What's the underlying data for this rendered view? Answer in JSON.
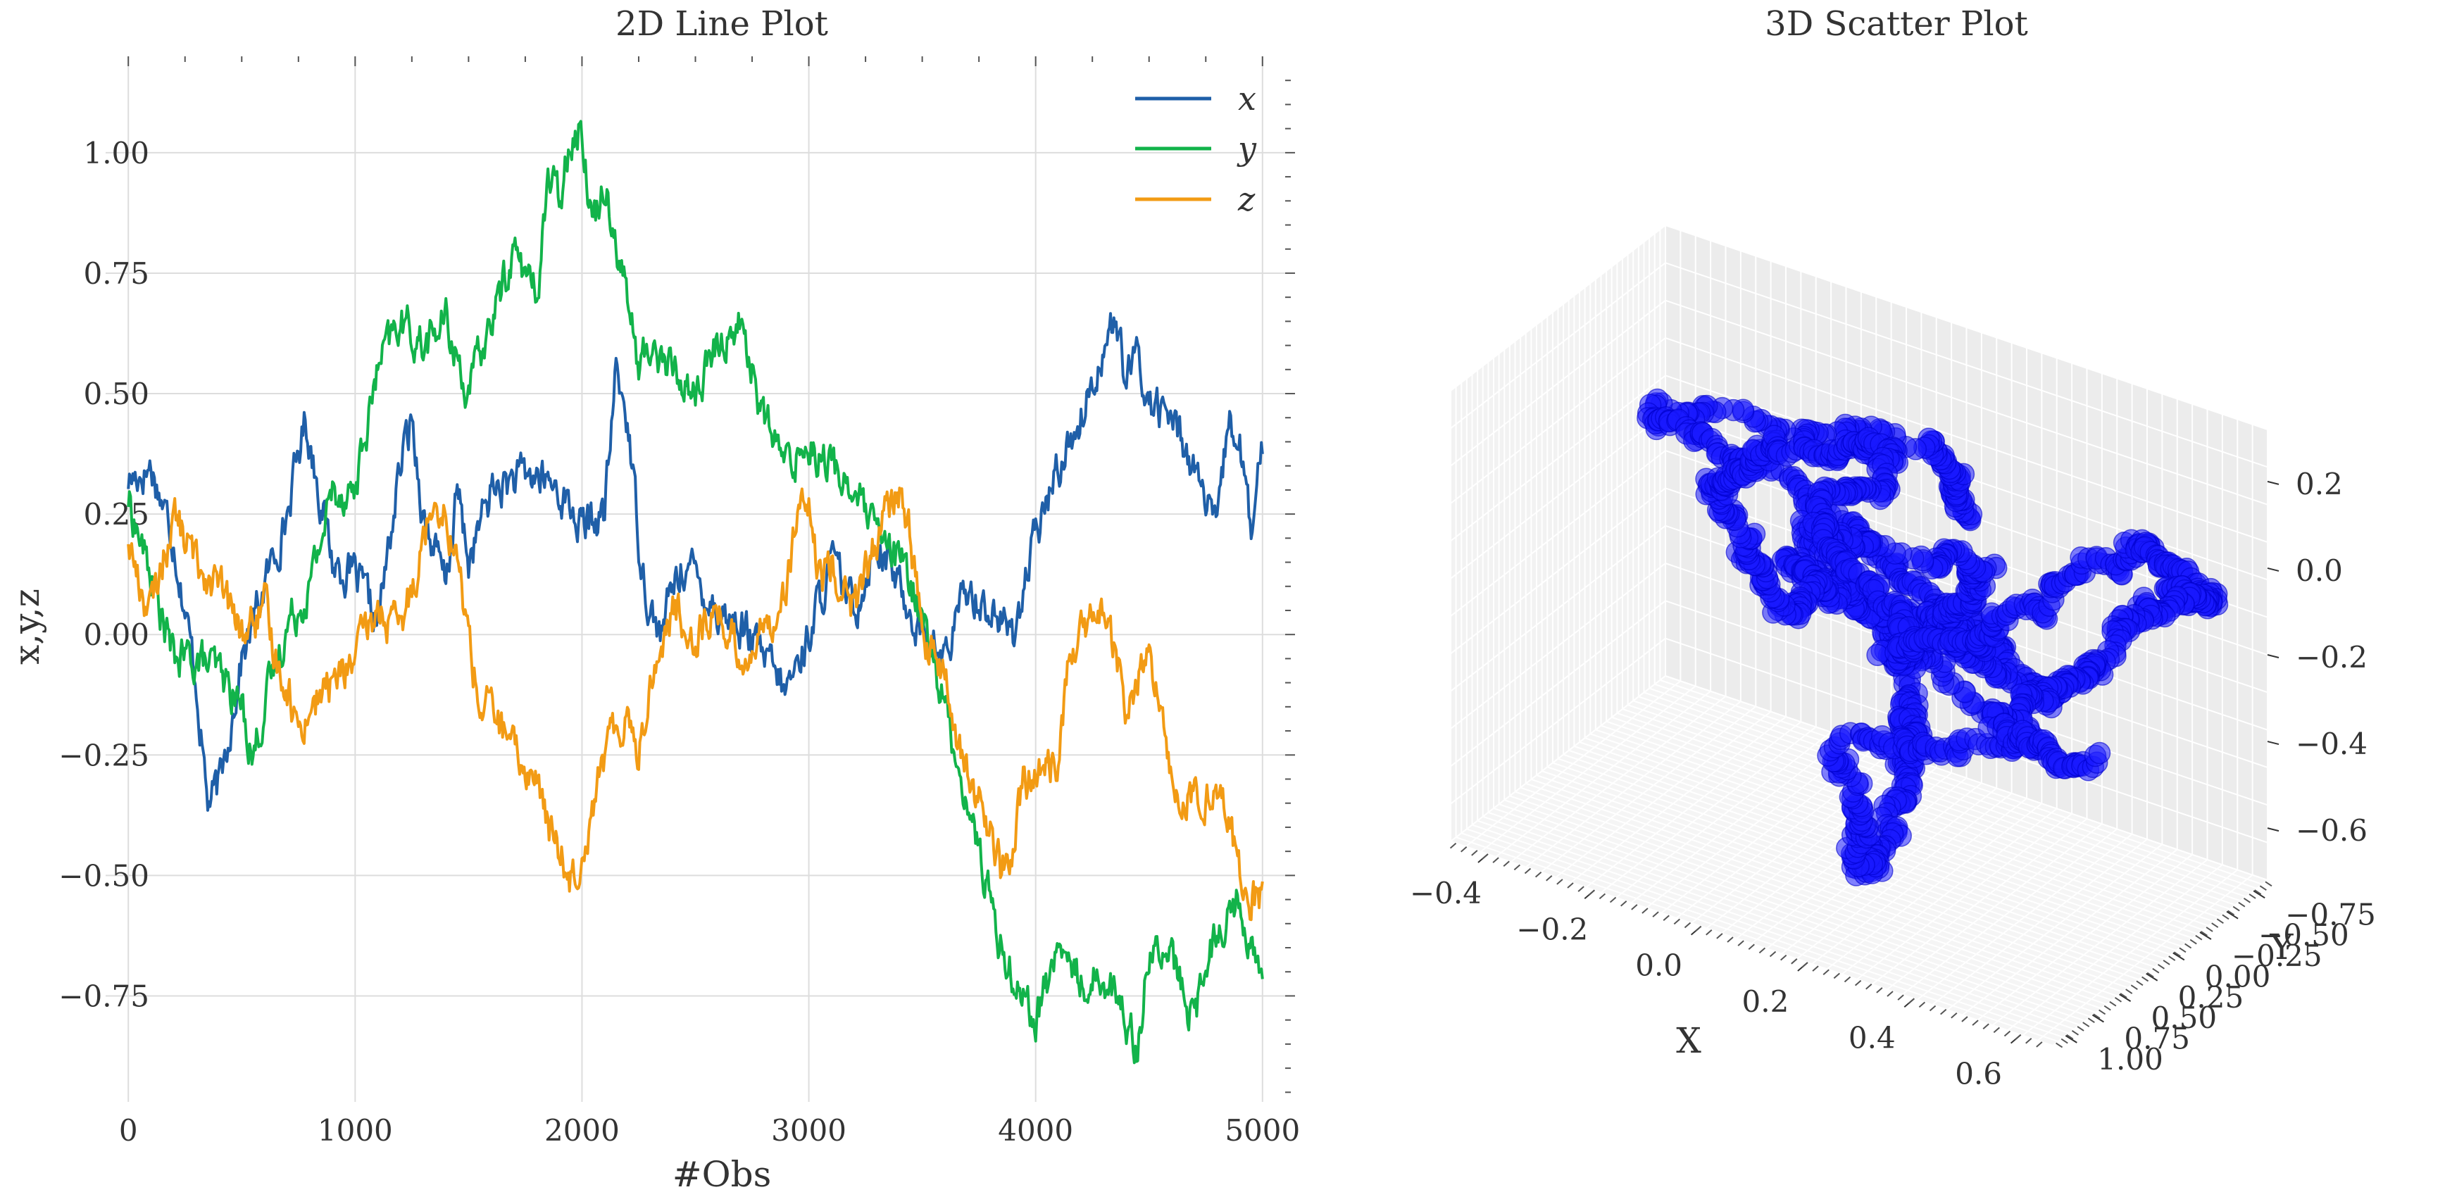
{
  "chart_data": [
    {
      "type": "line",
      "title": "2D Line Plot",
      "xlabel": "#Obs",
      "ylabel": "x,y,z",
      "xlim": [
        -100,
        5100
      ],
      "ylim": [
        -0.97,
        1.2
      ],
      "x_ticks": [
        "0",
        "1000",
        "2000",
        "3000",
        "4000",
        "5000"
      ],
      "y_ticks": [
        "−0.75",
        "−0.50",
        "−0.25",
        "0.00",
        "0.25",
        "0.50",
        "0.75",
        "1.00"
      ],
      "grid": true,
      "legend": "top-right",
      "series": [
        {
          "name": "x",
          "color": "#1f5fa8",
          "x": [
            0,
            100,
            200,
            300,
            350,
            400,
            500,
            600,
            700,
            780,
            850,
            900,
            1000,
            1100,
            1200,
            1250,
            1300,
            1400,
            1450,
            1500,
            1600,
            1700,
            1800,
            1900,
            2000,
            2100,
            2150,
            2200,
            2250,
            2300,
            2350,
            2400,
            2450,
            2500,
            2600,
            2700,
            2800,
            2900,
            3000,
            3100,
            3200,
            3300,
            3400,
            3500,
            3600,
            3700,
            3800,
            3900,
            4000,
            4100,
            4200,
            4300,
            4350,
            4400,
            4450,
            4500,
            4600,
            4700,
            4800,
            4850,
            4900,
            4950,
            5000
          ],
          "values": [
            0.32,
            0.35,
            0.2,
            -0.1,
            -0.35,
            -0.32,
            -0.05,
            0.1,
            0.25,
            0.45,
            0.28,
            0.15,
            0.12,
            0.02,
            0.35,
            0.45,
            0.25,
            0.1,
            0.3,
            0.15,
            0.3,
            0.32,
            0.33,
            0.3,
            0.22,
            0.25,
            0.55,
            0.45,
            0.2,
            0.05,
            0.0,
            0.1,
            0.15,
            0.12,
            0.05,
            0.02,
            -0.05,
            -0.12,
            0.0,
            0.15,
            0.05,
            0.2,
            0.1,
            0.0,
            -0.05,
            0.1,
            0.05,
            0.0,
            0.2,
            0.35,
            0.45,
            0.6,
            0.65,
            0.52,
            0.58,
            0.48,
            0.45,
            0.35,
            0.2,
            0.45,
            0.4,
            0.2,
            0.38
          ]
        },
        {
          "name": "y",
          "color": "#12b34a",
          "x": [
            0,
            100,
            200,
            300,
            400,
            500,
            550,
            600,
            700,
            800,
            900,
            1000,
            1100,
            1200,
            1300,
            1400,
            1500,
            1600,
            1700,
            1800,
            1850,
            1900,
            1950,
            2000,
            2050,
            2100,
            2200,
            2250,
            2300,
            2400,
            2500,
            2600,
            2700,
            2800,
            2900,
            3000,
            3100,
            3200,
            3300,
            3400,
            3500,
            3600,
            3700,
            3800,
            3850,
            3900,
            4000,
            4100,
            4200,
            4300,
            4400,
            4450,
            4500,
            4600,
            4700,
            4800,
            4900,
            5000
          ],
          "values": [
            0.28,
            0.12,
            -0.05,
            -0.05,
            -0.08,
            -0.15,
            -0.25,
            -0.15,
            0.02,
            0.1,
            0.3,
            0.3,
            0.55,
            0.65,
            0.6,
            0.65,
            0.5,
            0.65,
            0.8,
            0.7,
            0.95,
            0.9,
            1.05,
            1.05,
            0.85,
            0.95,
            0.7,
            0.55,
            0.6,
            0.55,
            0.5,
            0.6,
            0.65,
            0.45,
            0.35,
            0.4,
            0.35,
            0.3,
            0.2,
            0.15,
            0.05,
            -0.15,
            -0.35,
            -0.55,
            -0.65,
            -0.7,
            -0.8,
            -0.65,
            -0.72,
            -0.7,
            -0.8,
            -0.85,
            -0.65,
            -0.68,
            -0.8,
            -0.6,
            -0.55,
            -0.73
          ]
        },
        {
          "name": "z",
          "color": "#f29b14",
          "x": [
            0,
            50,
            100,
            200,
            250,
            300,
            400,
            500,
            600,
            650,
            700,
            750,
            800,
            900,
            1000,
            1100,
            1200,
            1300,
            1350,
            1400,
            1450,
            1500,
            1550,
            1600,
            1700,
            1800,
            1850,
            1900,
            1950,
            2000,
            2100,
            2200,
            2250,
            2300,
            2400,
            2500,
            2600,
            2700,
            2800,
            2900,
            2950,
            3000,
            3050,
            3100,
            3200,
            3300,
            3400,
            3450,
            3500,
            3600,
            3700,
            3800,
            3850,
            3900,
            3950,
            4000,
            4100,
            4150,
            4200,
            4300,
            4350,
            4400,
            4500,
            4600,
            4700,
            4800,
            4900,
            4950,
            5000
          ],
          "values": [
            0.2,
            0.1,
            0.05,
            0.25,
            0.2,
            0.15,
            0.1,
            0.0,
            0.05,
            -0.05,
            -0.1,
            -0.2,
            -0.15,
            -0.1,
            -0.05,
            0.05,
            0.0,
            0.2,
            0.3,
            0.25,
            0.15,
            0.0,
            -0.15,
            -0.15,
            -0.25,
            -0.3,
            -0.4,
            -0.45,
            -0.5,
            -0.45,
            -0.25,
            -0.15,
            -0.25,
            -0.1,
            0.05,
            0.0,
            0.05,
            -0.05,
            0.0,
            0.1,
            0.25,
            0.25,
            0.1,
            0.15,
            0.05,
            0.2,
            0.3,
            0.2,
            0.0,
            -0.1,
            -0.3,
            -0.4,
            -0.5,
            -0.45,
            -0.3,
            -0.3,
            -0.25,
            -0.05,
            0.0,
            0.05,
            -0.05,
            -0.15,
            -0.05,
            -0.3,
            -0.35,
            -0.3,
            -0.5,
            -0.55,
            -0.55
          ]
        }
      ]
    },
    {
      "type": "scatter",
      "title": "3D Scatter Plot",
      "xlabel": "X",
      "ylabel": "Y",
      "xlim": [
        -0.47,
        0.66
      ],
      "ylim": [
        -0.88,
        1.12
      ],
      "zlim": [
        -0.72,
        0.32
      ],
      "x_ticks": [
        "−0.4",
        "−0.2",
        "0.0",
        "0.2",
        "0.4",
        "0.6"
      ],
      "y_ticks": [
        "−0.75",
        "−0.50",
        "−0.25",
        "0.00",
        "0.25",
        "0.50",
        "0.75",
        "1.00"
      ],
      "z_ticks": [
        "−0.6",
        "−0.4",
        "−0.2",
        "0.0",
        "0.2"
      ],
      "grid": true,
      "color": "#1a1aff",
      "note_on_points": "dense random-walk trajectory of ~5000 points, drawn from the same x,y,z series",
      "anchors": [
        {
          "x": 0.32,
          "y": 0.28,
          "z": 0.2
        },
        {
          "x": 0.2,
          "y": -0.05,
          "z": 0.25
        },
        {
          "x": -0.35,
          "y": -0.08,
          "z": 0.1
        },
        {
          "x": -0.05,
          "y": -0.15,
          "z": 0.0
        },
        {
          "x": 0.25,
          "y": 0.02,
          "z": -0.1
        },
        {
          "x": 0.45,
          "y": 0.1,
          "z": -0.2
        },
        {
          "x": 0.12,
          "y": 0.3,
          "z": -0.05
        },
        {
          "x": 0.35,
          "y": 0.55,
          "z": 0.0
        },
        {
          "x": 0.45,
          "y": 0.65,
          "z": 0.2
        },
        {
          "x": 0.1,
          "y": 0.65,
          "z": 0.15
        },
        {
          "x": 0.3,
          "y": 0.65,
          "z": -0.15
        },
        {
          "x": 0.32,
          "y": 0.8,
          "z": -0.3
        },
        {
          "x": 0.3,
          "y": 1.05,
          "z": -0.5
        },
        {
          "x": 0.22,
          "y": 0.95,
          "z": -0.25
        },
        {
          "x": 0.55,
          "y": 0.7,
          "z": -0.15
        },
        {
          "x": 0.05,
          "y": 0.6,
          "z": 0.05
        },
        {
          "x": 0.15,
          "y": 0.5,
          "z": 0.0
        },
        {
          "x": 0.05,
          "y": 0.65,
          "z": -0.05
        },
        {
          "x": -0.12,
          "y": 0.45,
          "z": 0.1
        },
        {
          "x": 0.0,
          "y": 0.4,
          "z": 0.25
        },
        {
          "x": 0.2,
          "y": 0.3,
          "z": 0.3
        },
        {
          "x": 0.0,
          "y": 0.05,
          "z": 0.0
        },
        {
          "x": 0.1,
          "y": -0.35,
          "z": -0.3
        },
        {
          "x": 0.0,
          "y": -0.7,
          "z": -0.45
        },
        {
          "x": 0.2,
          "y": -0.8,
          "z": -0.3
        },
        {
          "x": 0.45,
          "y": -0.72,
          "z": 0.0
        },
        {
          "x": 0.6,
          "y": -0.7,
          "z": -0.05
        },
        {
          "x": 0.45,
          "y": -0.8,
          "z": -0.15
        },
        {
          "x": 0.35,
          "y": -0.65,
          "z": -0.35
        },
        {
          "x": 0.2,
          "y": -0.6,
          "z": -0.5
        },
        {
          "x": 0.38,
          "y": -0.73,
          "z": -0.55
        }
      ]
    }
  ]
}
